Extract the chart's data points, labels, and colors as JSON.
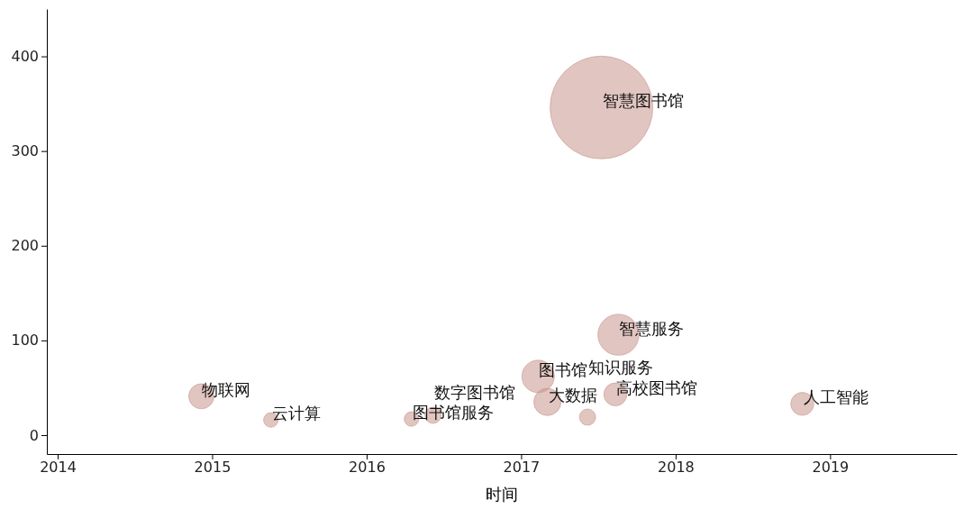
{
  "chart_data": {
    "type": "bubble",
    "xlabel": "时间",
    "xlim": [
      2013.93,
      2019.82
    ],
    "ylim": [
      -20,
      450
    ],
    "xticks": [
      2014,
      2015,
      2016,
      2017,
      2018,
      2019
    ],
    "yticks": [
      0,
      100,
      200,
      300,
      400
    ],
    "grid": false,
    "series": [
      {
        "color": "#c9958c",
        "x": [
          2014.93,
          2015.38,
          2016.29,
          2016.43,
          2017.11,
          2017.17,
          2017.61,
          2017.43,
          2017.63,
          2017.52,
          2018.82
        ],
        "values": [
          41,
          16,
          17,
          21,
          62,
          35,
          43,
          19,
          106,
          346,
          33
        ],
        "sizes": [
          0.06,
          0.02,
          0.02,
          0.025,
          0.1,
          0.07,
          0.05,
          0.025,
          0.16,
          1,
          0.05
        ]
      }
    ],
    "annotations": [
      {
        "text": "物联网",
        "x": 2014.93,
        "y": 41
      },
      {
        "text": "云计算",
        "x": 2015.38,
        "y": 16
      },
      {
        "text": "图书馆服务",
        "x": 2016.29,
        "y": 17
      },
      {
        "text": "数字图书馆",
        "x": 2016.43,
        "y": 21
      },
      {
        "text": "图书馆",
        "x": 2017.11,
        "y": 62
      },
      {
        "text": "大数据",
        "x": 2017.17,
        "y": 35
      },
      {
        "text": "高校图书馆",
        "x": 2017.61,
        "y": 43
      },
      {
        "text": "知识服务",
        "x": 2017.43,
        "y": 19
      },
      {
        "text": "智慧服务",
        "x": 2017.63,
        "y": 106
      },
      {
        "text": "智慧图书馆",
        "x": 2017.52,
        "y": 346
      },
      {
        "text": "人工智能",
        "x": 2018.82,
        "y": 33
      }
    ]
  }
}
